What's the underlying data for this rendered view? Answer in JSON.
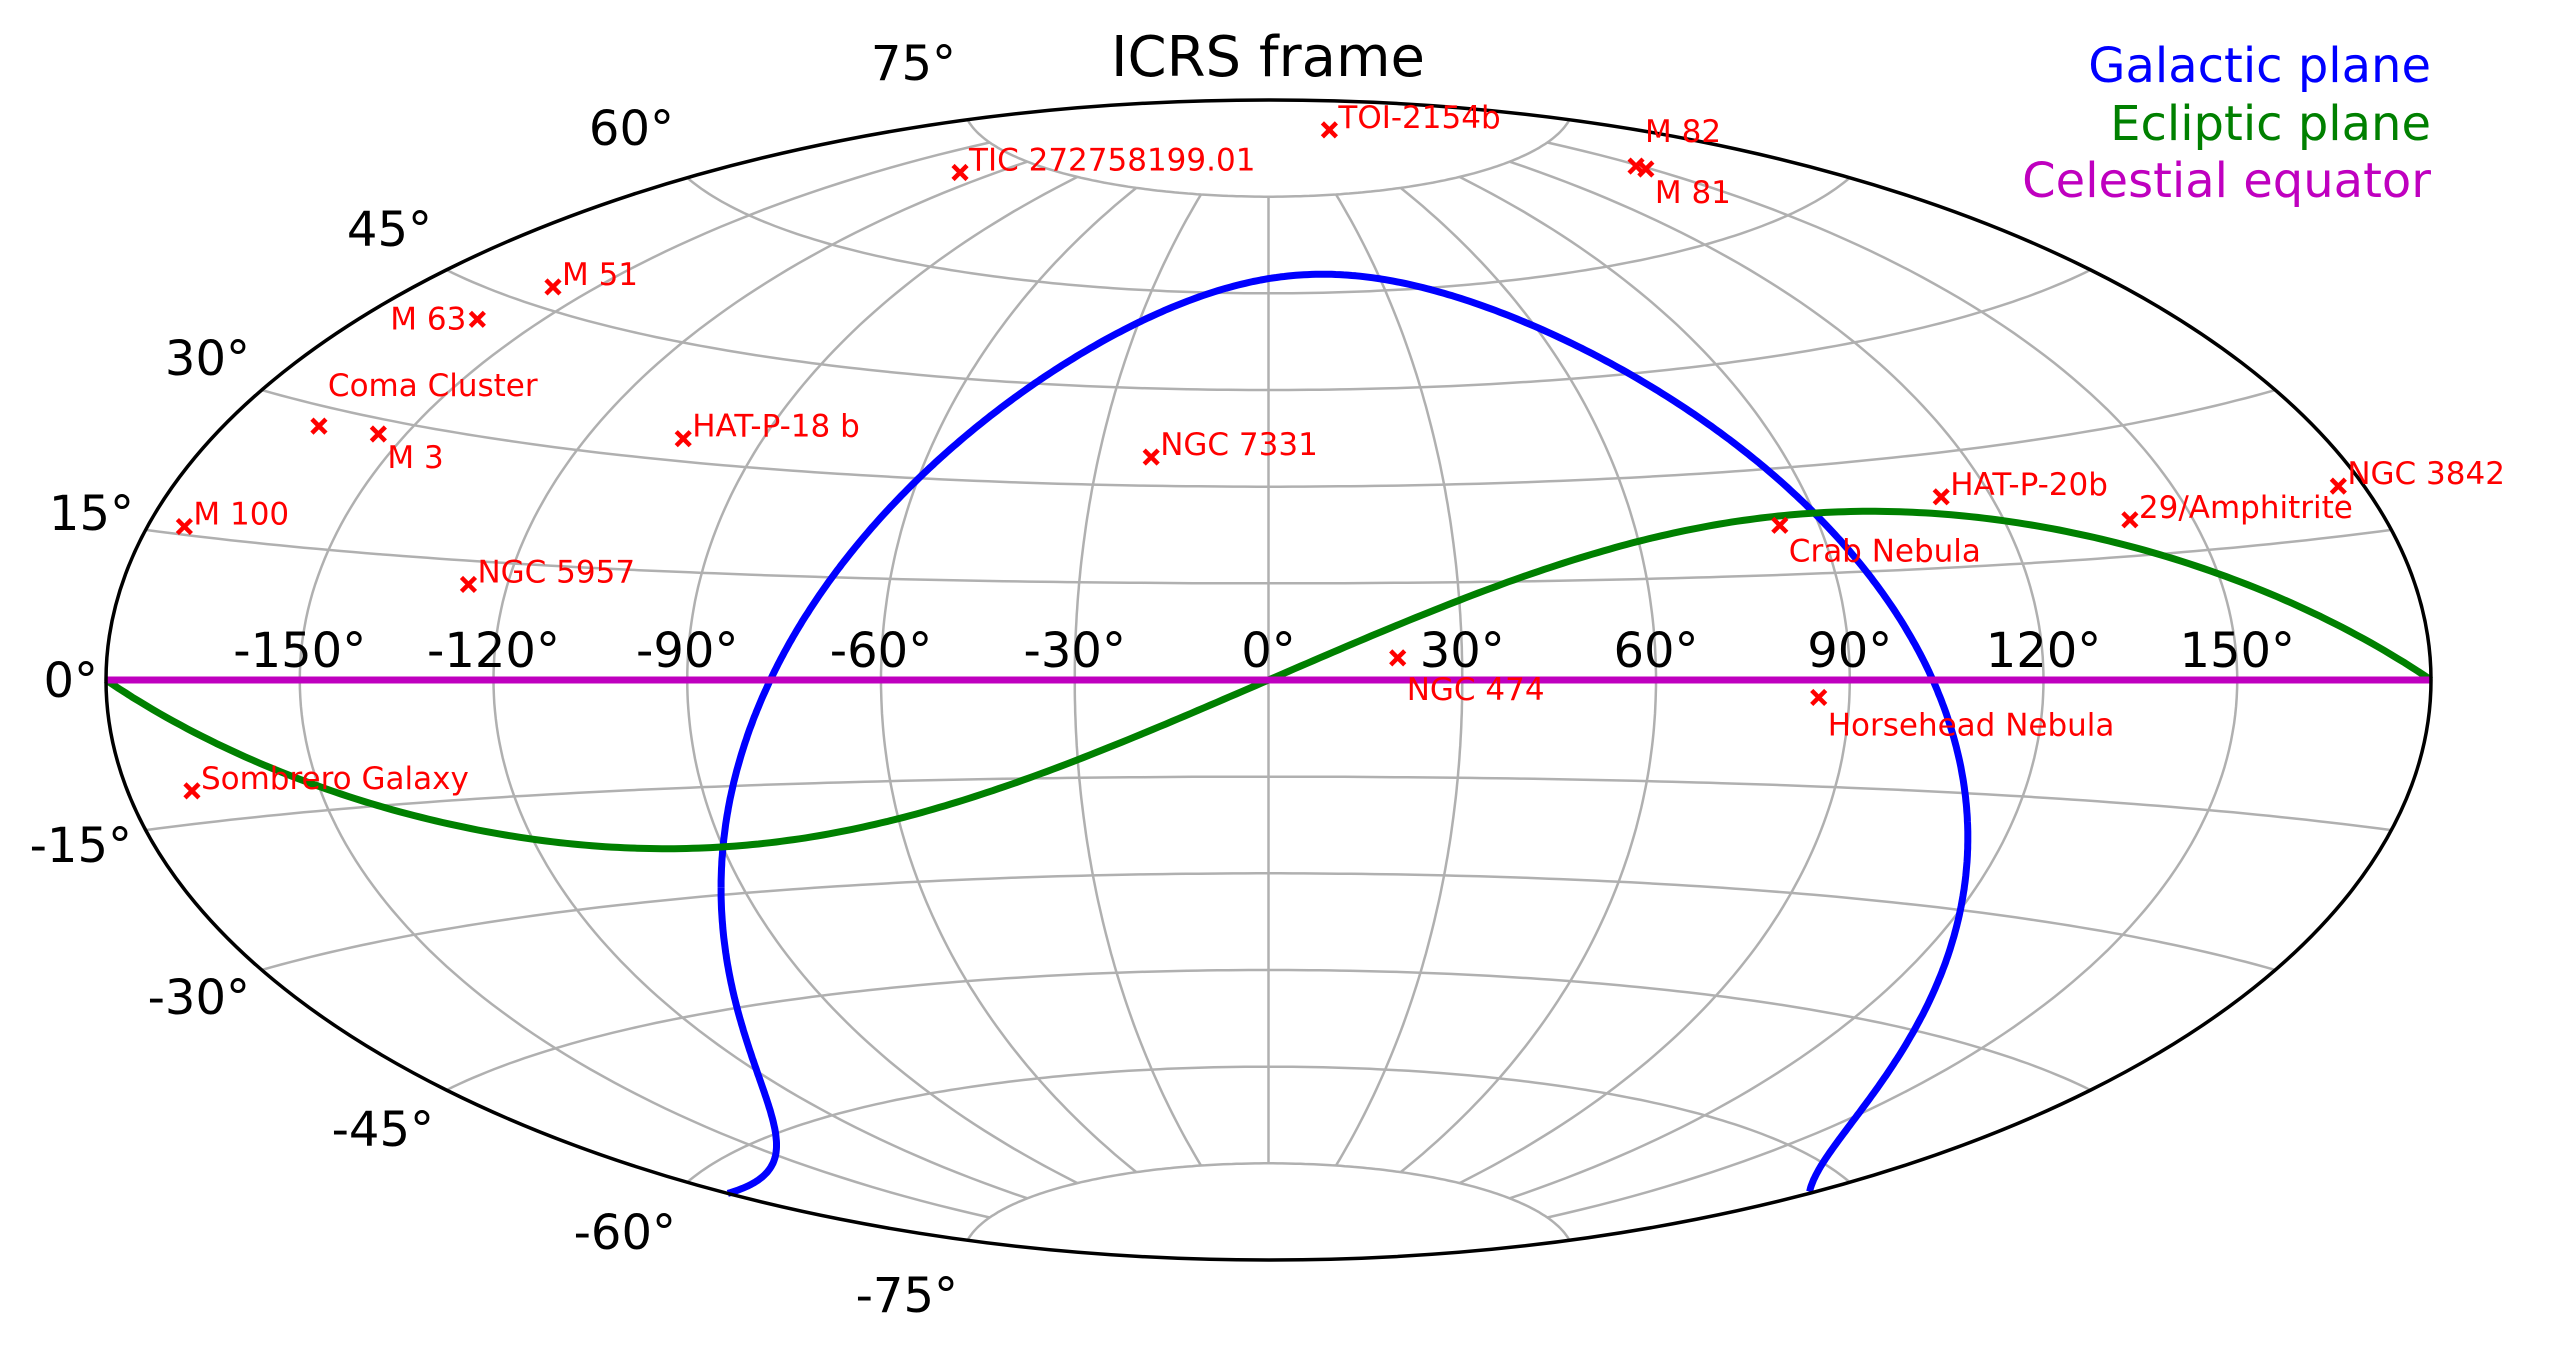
{
  "chart_data": {
    "type": "scatter",
    "projection": "aitoff",
    "title": "ICRS frame",
    "grid": true,
    "legend_placement": "top-right",
    "x_ticks": [
      "-150°",
      "-120°",
      "-90°",
      "-60°",
      "-30°",
      "0°",
      "30°",
      "60°",
      "90°",
      "120°",
      "150°"
    ],
    "x_tick_values": [
      -150,
      -120,
      -90,
      -60,
      -30,
      0,
      30,
      60,
      90,
      120,
      150
    ],
    "y_ticks": [
      "-75°",
      "-60°",
      "-45°",
      "-30°",
      "-15°",
      "0°",
      "15°",
      "30°",
      "45°",
      "60°",
      "75°"
    ],
    "y_tick_values": [
      -75,
      -60,
      -45,
      -30,
      -15,
      0,
      15,
      30,
      45,
      60,
      75
    ],
    "xlim": [
      -180,
      180
    ],
    "ylim": [
      -90,
      90
    ],
    "lines": [
      {
        "name": "Galactic plane",
        "color": "#0000ff",
        "definition": {
          "galactic_latitude": 0,
          "north_galactic_pole_ra": 192.85948,
          "north_galactic_pole_dec": 27.12825,
          "ncp_galactic_longitude": 122.93192
        }
      },
      {
        "name": "Ecliptic plane",
        "color": "#008000",
        "definition": {
          "obliquity": 23.44
        }
      },
      {
        "name": "Celestial equator",
        "color": "#bf00bf",
        "definition": {
          "dec": 0
        }
      }
    ],
    "marker_color": "#ff0000",
    "marker": "x",
    "points": [
      {
        "label": "TOI-2154b",
        "ra": 70.0,
        "dec": 84.5
      },
      {
        "label": "TIC 272758199.01",
        "ra": -130.0,
        "dec": 71.5
      },
      {
        "label": "M 82",
        "ra": 148.97,
        "dec": 69.68
      },
      {
        "label": "M 81",
        "ra": 148.89,
        "dec": 69.07
      },
      {
        "label": "M 51",
        "ra": -157.53,
        "dec": 47.2
      },
      {
        "label": "M 63",
        "ra": -161.04,
        "dec": 42.03
      },
      {
        "label": "Coma Cluster",
        "ra": -165.05,
        "dec": 27.98
      },
      {
        "label": "M 3",
        "ra": -154.45,
        "dec": 28.38
      },
      {
        "label": "HAT-P-18 b",
        "ra": -103.65,
        "dec": 33.01
      },
      {
        "label": "NGC 7331",
        "ra": -20.73,
        "dec": 34.42
      },
      {
        "label": "M 100",
        "ra": -174.27,
        "dec": 15.82
      },
      {
        "label": "NGC 5957",
        "ra": -126.1,
        "dec": 12.05
      },
      {
        "label": "Crab Nebula",
        "ra": 83.63,
        "dec": 22.01
      },
      {
        "label": "HAT-P-20b",
        "ra": 111.92,
        "dec": 24.34
      },
      {
        "label": "29/Amphitrite",
        "ra": 140.0,
        "dec": 19.3
      },
      {
        "label": "NGC 3842",
        "ra": 176.0,
        "dec": 19.95
      },
      {
        "label": "NGC 474",
        "ra": 20.03,
        "dec": 3.42
      },
      {
        "label": "Horsehead Nebula",
        "ra": 85.25,
        "dec": -2.46
      },
      {
        "label": "Sombrero Galaxy",
        "ra": -170.0,
        "dec": -11.62
      }
    ]
  }
}
